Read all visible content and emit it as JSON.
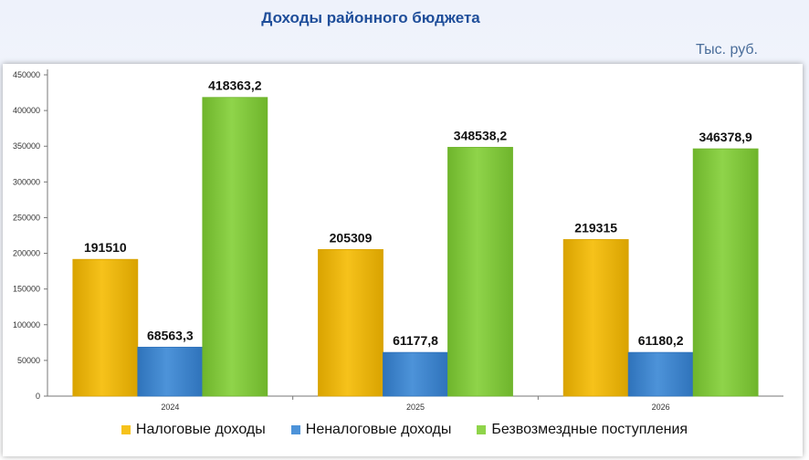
{
  "header": {
    "title": "Доходы районного бюджета",
    "units": "Тыс. руб."
  },
  "colors": {
    "series": [
      "#f6c21b",
      "#4d93d9",
      "#8fd44a"
    ],
    "series_dark": [
      "#d9a300",
      "#2f73bb",
      "#6fb52c"
    ],
    "axis": "#777777"
  },
  "chart_data": {
    "type": "bar",
    "title": "Доходы районного бюджета",
    "xlabel": "",
    "ylabel": "",
    "categories": [
      "2024",
      "2025",
      "2026"
    ],
    "ylim": [
      0,
      450000
    ],
    "yticks": [
      0,
      50000,
      100000,
      150000,
      200000,
      250000,
      300000,
      350000,
      400000,
      450000
    ],
    "series": [
      {
        "name": "Налоговые доходы",
        "values": [
          191510,
          205309,
          219315
        ],
        "labels": [
          "191510",
          "205309",
          "219315"
        ]
      },
      {
        "name": "Неналоговые доходы",
        "values": [
          68563.3,
          61177.8,
          61180.2
        ],
        "labels": [
          "68563,3",
          "61177,8",
          "61180,2"
        ]
      },
      {
        "name": "Безвозмездные поступления",
        "values": [
          418363.2,
          348538.2,
          346378.9
        ],
        "labels": [
          "418363,2",
          "348538,2",
          "346378,9"
        ]
      }
    ],
    "grid": false,
    "legend": "bottom"
  }
}
